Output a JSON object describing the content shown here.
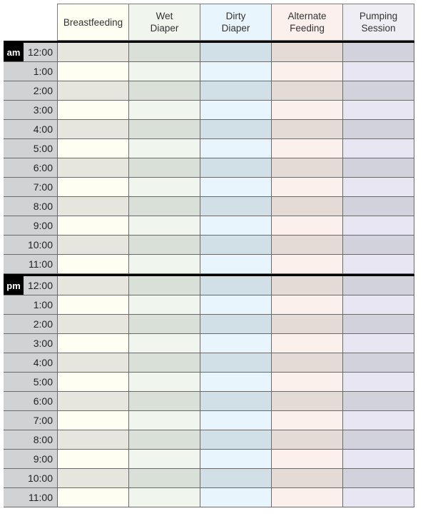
{
  "columns": [
    {
      "label": "Breastfeeding",
      "header_color": "#fefef2",
      "dark": "#e6e6de",
      "light": "#fefef2"
    },
    {
      "label": "Wet\nDiaper",
      "header_color": "#f0f5ee",
      "dark": "#d8e0d8",
      "light": "#f0f5ee"
    },
    {
      "label": "Dirty\nDiaper",
      "header_color": "#e8f5fc",
      "dark": "#d0e0e6",
      "light": "#e8f5fc"
    },
    {
      "label": "Alternate\nFeeding",
      "header_color": "#fcf0ec",
      "dark": "#e4dad6",
      "light": "#fcf0ec"
    },
    {
      "label": "Pumping\nSession",
      "header_color": "#eeeef4",
      "dark": "#d2d2dc",
      "light": "#e8e6f2"
    }
  ],
  "sections": [
    {
      "period": "am",
      "times": [
        "12:00",
        "1:00",
        "2:00",
        "3:00",
        "4:00",
        "5:00",
        "6:00",
        "7:00",
        "8:00",
        "9:00",
        "10:00",
        "11:00"
      ]
    },
    {
      "period": "pm",
      "times": [
        "12:00",
        "1:00",
        "2:00",
        "3:00",
        "4:00",
        "5:00",
        "6:00",
        "7:00",
        "8:00",
        "9:00",
        "10:00",
        "11:00"
      ]
    }
  ]
}
